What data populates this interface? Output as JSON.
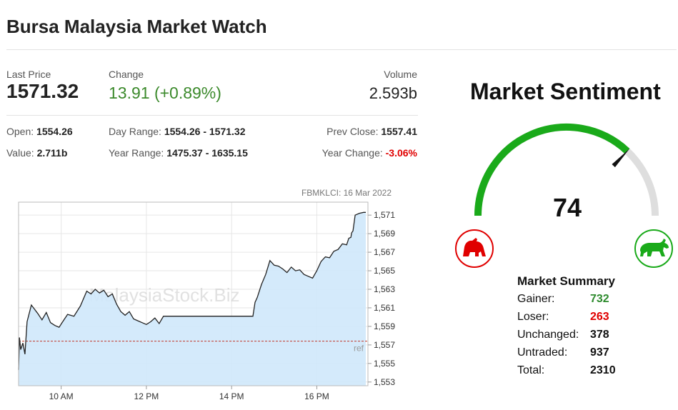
{
  "header": {
    "title": "Bursa Malaysia Market Watch"
  },
  "quote": {
    "last_price_label": "Last Price",
    "last_price": "1571.32",
    "change_label": "Change",
    "change": "13.91 (+0.89%)",
    "volume_label": "Volume",
    "volume": "2.593b"
  },
  "stats": {
    "open_label": "Open:",
    "open": "1554.26",
    "day_range_label": "Day Range:",
    "day_range": "1554.26 - 1571.32",
    "prev_close_label": "Prev Close:",
    "prev_close": "1557.41",
    "value_label": "Value:",
    "value": "2.711b",
    "year_range_label": "Year Range:",
    "year_range": "1475.37 - 1635.15",
    "year_change_label": "Year Change:",
    "year_change": "-3.06%"
  },
  "colors": {
    "positive": "#3c8a2c",
    "negative": "#e00000",
    "gauge_green": "#1aaa1a",
    "gauge_grey": "#dedede",
    "area_fill": "#cfe8fb",
    "line": "#222222"
  },
  "chart_data": {
    "type": "area",
    "title": "FBMKLCI: 16 Mar 2022",
    "watermark": "MalaysiaStock.Biz",
    "ref_label": "ref",
    "ref_value": 1557.41,
    "ylim": [
      1552.6,
      1572.4
    ],
    "y_ticks": [
      "1,571",
      "1,569",
      "1,567",
      "1,565",
      "1,563",
      "1,561",
      "1,559",
      "1,557",
      "1,555",
      "1,553"
    ],
    "y_tick_values": [
      1571,
      1569,
      1567,
      1565,
      1563,
      1561,
      1559,
      1557,
      1555,
      1553
    ],
    "x_ticks": [
      "10 AM",
      "12 PM",
      "14 PM",
      "16 PM"
    ],
    "x_tick_hours": [
      10,
      12,
      14,
      16
    ],
    "xlim": [
      9.0,
      17.2
    ],
    "series": [
      {
        "x": [
          9.0,
          9.02,
          9.05,
          9.1,
          9.15,
          9.2,
          9.3,
          9.35,
          9.45,
          9.55,
          9.65,
          9.75,
          9.85,
          9.95,
          10.05,
          10.15,
          10.3,
          10.45,
          10.6,
          10.7,
          10.8,
          10.9,
          11.0,
          11.1,
          11.2,
          11.3,
          11.4,
          11.5,
          11.6,
          11.7,
          11.8,
          11.9,
          12.0,
          12.1,
          12.2,
          12.3,
          12.4,
          12.5,
          12.5,
          13.0,
          13.5,
          14.0,
          14.25,
          14.5,
          14.55,
          14.6,
          14.7,
          14.8,
          14.9,
          15.0,
          15.1,
          15.2,
          15.3,
          15.4,
          15.5,
          15.6,
          15.7,
          15.8,
          15.9,
          16.0,
          16.1,
          16.2,
          16.3,
          16.4,
          16.5,
          16.6,
          16.7,
          16.75,
          16.8,
          16.82,
          16.85,
          16.9,
          17.0,
          17.1,
          17.15
        ],
        "values": [
          1554.3,
          1557.8,
          1556.5,
          1557.2,
          1556.0,
          1559.5,
          1561.3,
          1561.0,
          1560.4,
          1559.7,
          1560.5,
          1559.4,
          1559.1,
          1558.9,
          1559.6,
          1560.3,
          1560.1,
          1561.2,
          1562.8,
          1562.5,
          1563.0,
          1562.6,
          1562.9,
          1562.2,
          1562.5,
          1561.4,
          1560.6,
          1560.2,
          1560.6,
          1559.8,
          1559.6,
          1559.4,
          1559.2,
          1559.5,
          1559.9,
          1559.3,
          1560.1,
          1560.1,
          1560.1,
          1560.1,
          1560.1,
          1560.1,
          1560.1,
          1560.1,
          1561.6,
          1562.1,
          1563.5,
          1564.6,
          1566.1,
          1565.6,
          1565.5,
          1565.2,
          1564.8,
          1565.4,
          1565.0,
          1565.1,
          1564.6,
          1564.4,
          1564.2,
          1565.0,
          1566.0,
          1566.5,
          1566.4,
          1567.1,
          1567.3,
          1567.9,
          1567.8,
          1568.5,
          1568.6,
          1569.1,
          1569.3,
          1571.0,
          1571.2,
          1571.3,
          1571.3
        ]
      }
    ],
    "grid": true
  },
  "sentiment": {
    "title": "Market Sentiment",
    "value": "74",
    "value_num": 74,
    "bear_icon": "bear-icon",
    "bull_icon": "bull-icon"
  },
  "summary": {
    "title": "Market Summary",
    "rows": [
      {
        "label": "Gainer:",
        "value": "732"
      },
      {
        "label": "Loser:",
        "value": "263"
      },
      {
        "label": "Unchanged:",
        "value": "378"
      },
      {
        "label": "Untraded:",
        "value": "937"
      },
      {
        "label": "Total:",
        "value": "2310"
      }
    ]
  }
}
